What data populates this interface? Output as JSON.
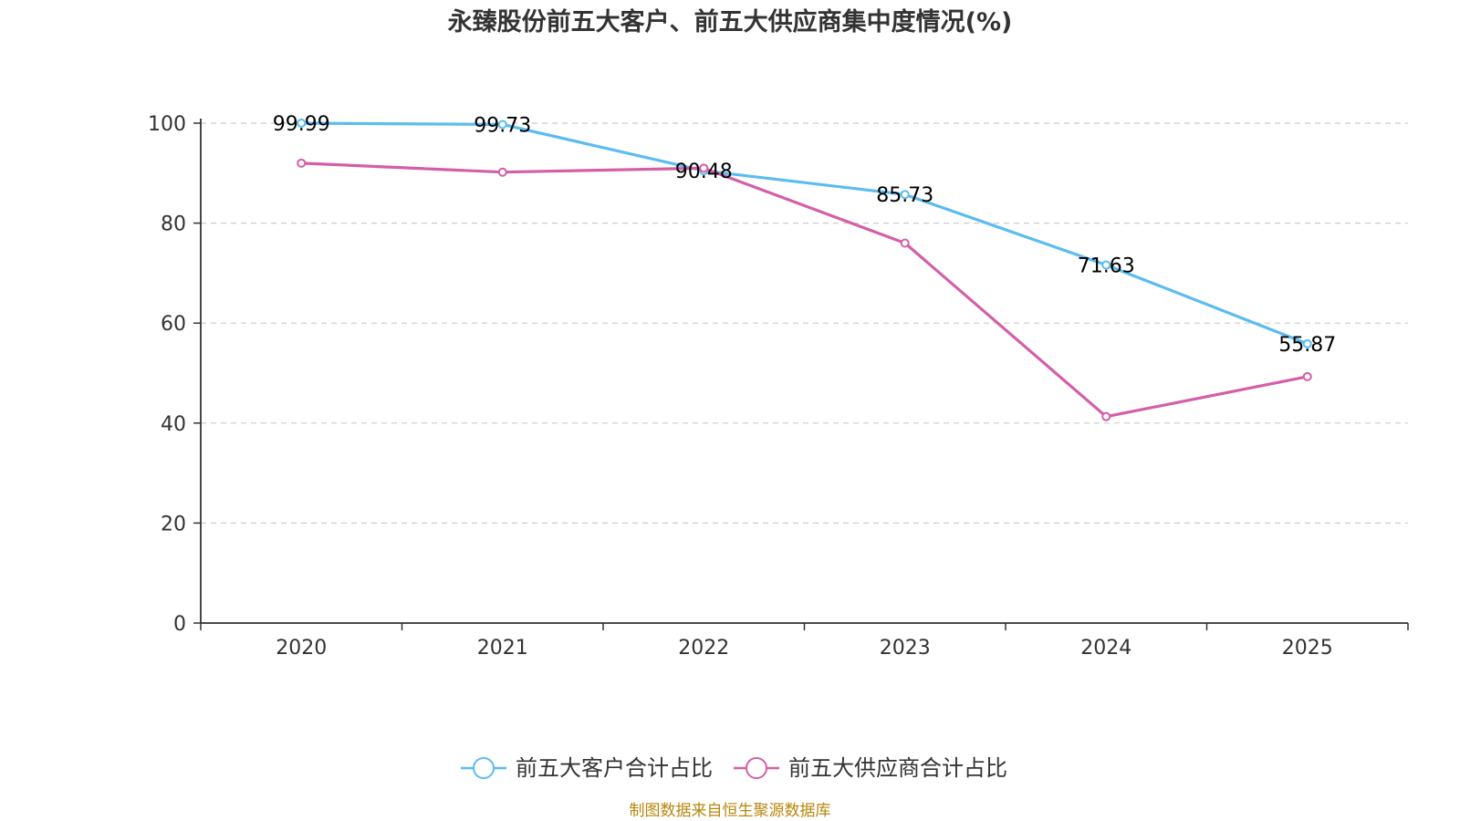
{
  "chart_data": {
    "type": "line",
    "title": "永臻股份前五大客户、前五大供应商集中度情况(%)",
    "categories": [
      "2020",
      "2021",
      "2022",
      "2023",
      "2024",
      "2025"
    ],
    "ylim": [
      0,
      100
    ],
    "yticks": [
      0,
      20,
      40,
      60,
      80,
      100
    ],
    "ytick_labels": [
      "0",
      "20",
      "40",
      "60",
      "80",
      "100"
    ],
    "grid": true,
    "legend_position": "bottom-center",
    "series": [
      {
        "name": "前五大客户合计占比",
        "color": "#5bbcf0",
        "values": [
          99.99,
          99.73,
          90.48,
          85.73,
          71.63,
          55.87
        ],
        "labels": [
          "99.99",
          "99.73",
          "90.48",
          "85.73",
          "71.63",
          "55.87"
        ],
        "show_labels": true
      },
      {
        "name": "前五大供应商合计占比",
        "color": "#d35fa8",
        "values": [
          92.0,
          90.2,
          91.0,
          76.0,
          41.3,
          49.3
        ],
        "show_labels": false
      }
    ],
    "source": "制图数据来自恒生聚源数据库"
  }
}
